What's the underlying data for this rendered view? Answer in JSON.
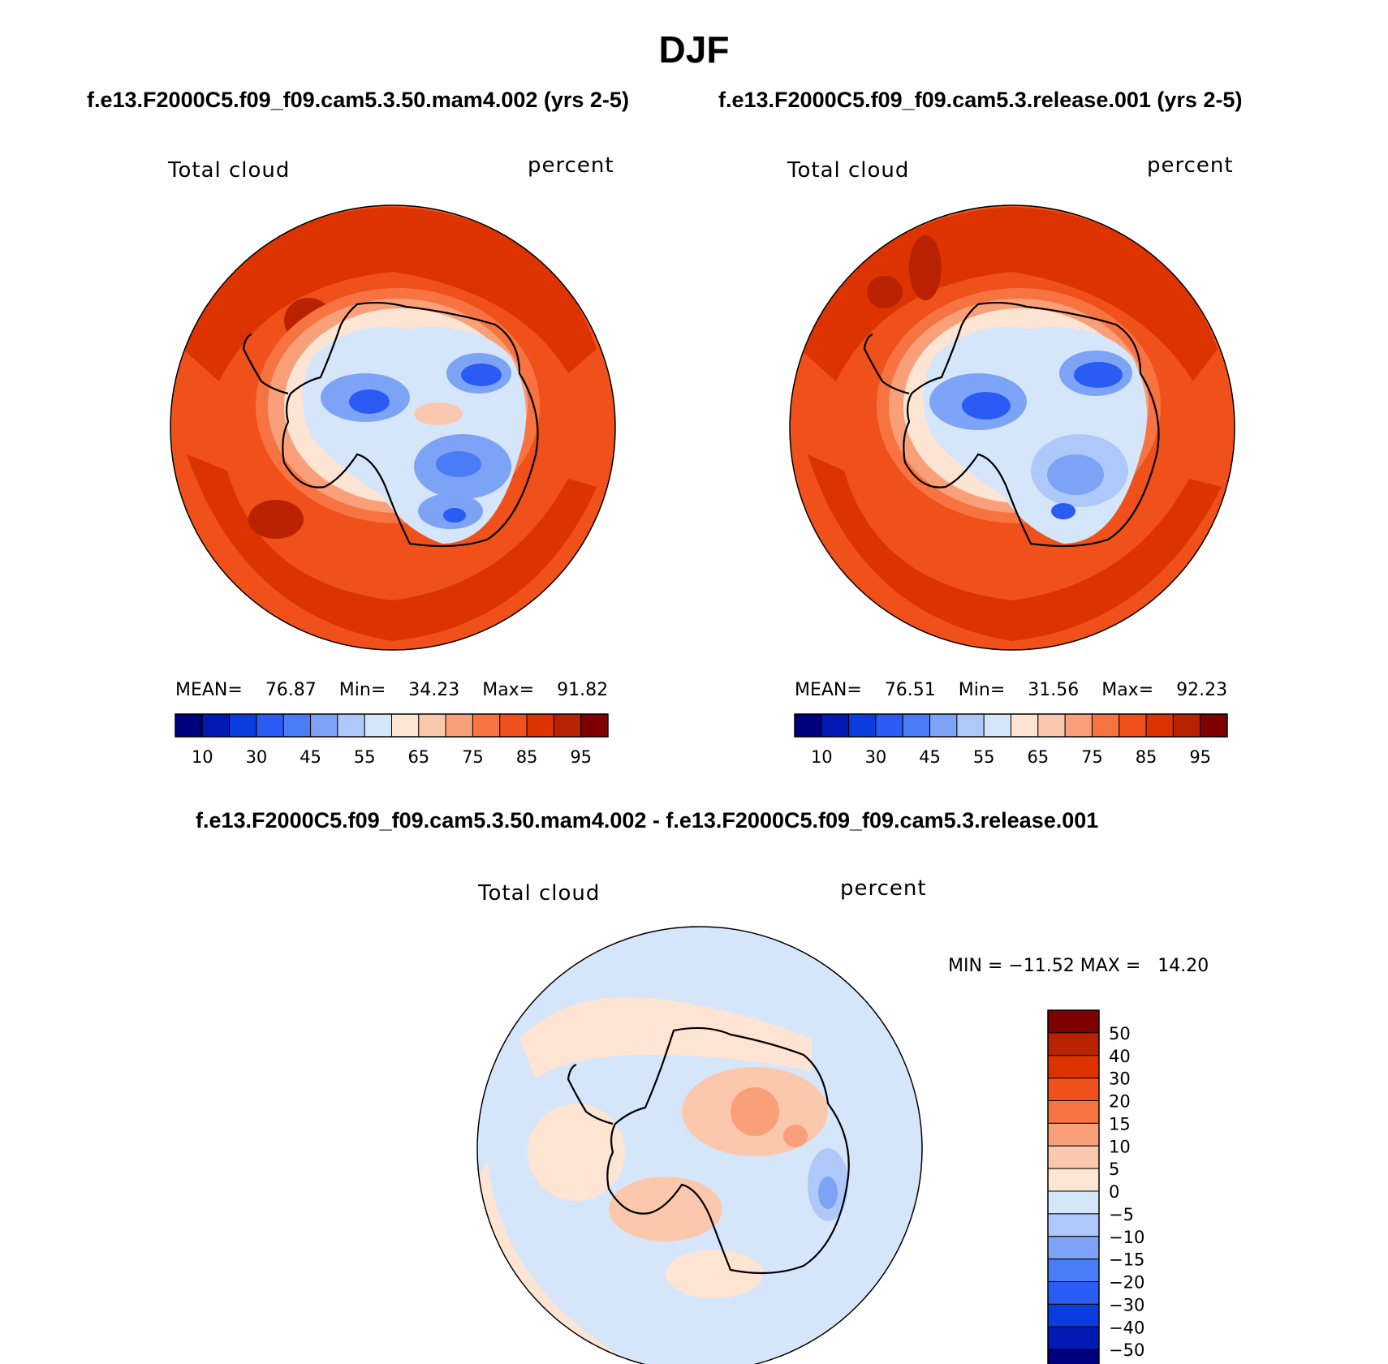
{
  "figure_title": "DJF",
  "panel_left": {
    "case": "f.e13.F2000C5.f09_f09.cam5.3.50.mam4.002 (yrs 2-5)",
    "variable": "Total cloud",
    "units": "percent",
    "stats": {
      "mean_label": "MEAN=",
      "mean": "76.87",
      "min_label": "Min=",
      "min": "34.23",
      "max_label": "Max=",
      "max": "91.82"
    }
  },
  "panel_right": {
    "case": "f.e13.F2000C5.f09_f09.cam5.3.release.001 (yrs 2-5)",
    "variable": "Total cloud",
    "units": "percent",
    "stats": {
      "mean_label": "MEAN=",
      "mean": "76.51",
      "min_label": "Min=",
      "min": "31.56",
      "max_label": "Max=",
      "max": "92.23"
    }
  },
  "colorbar_horizontal": {
    "colors": [
      "#00007f",
      "#001ab3",
      "#0a3ce0",
      "#2a5cf5",
      "#4a7cf7",
      "#7da3f7",
      "#afc8fa",
      "#d6e6fa",
      "#fde4d3",
      "#fcc8ad",
      "#f9a07a",
      "#f77442",
      "#f0501a",
      "#dc3300",
      "#b82200",
      "#7f0000"
    ],
    "labels": [
      "10",
      "30",
      "45",
      "55",
      "65",
      "75",
      "85",
      "95"
    ]
  },
  "panel_diff": {
    "title": "f.e13.F2000C5.f09_f09.cam5.3.50.mam4.002 - f.e13.F2000C5.f09_f09.cam5.3.release.001",
    "variable": "Total cloud",
    "units": "percent",
    "min_max": "MIN = −11.52 MAX =   14.20"
  },
  "colorbar_vertical": {
    "colors_top_to_bottom": [
      "#7f0000",
      "#b82200",
      "#dc3300",
      "#f0501a",
      "#f77442",
      "#f9a07a",
      "#fcc8ad",
      "#fde4d3",
      "#d6e6fa",
      "#afc8fa",
      "#7da3f7",
      "#4a7cf7",
      "#2a5cf5",
      "#0a3ce0",
      "#001ab3",
      "#00007f"
    ],
    "labels": [
      "50",
      "40",
      "30",
      "20",
      "15",
      "10",
      "5",
      "0",
      "−5",
      "−10",
      "−15",
      "−20",
      "−30",
      "−40",
      "−50"
    ]
  }
}
